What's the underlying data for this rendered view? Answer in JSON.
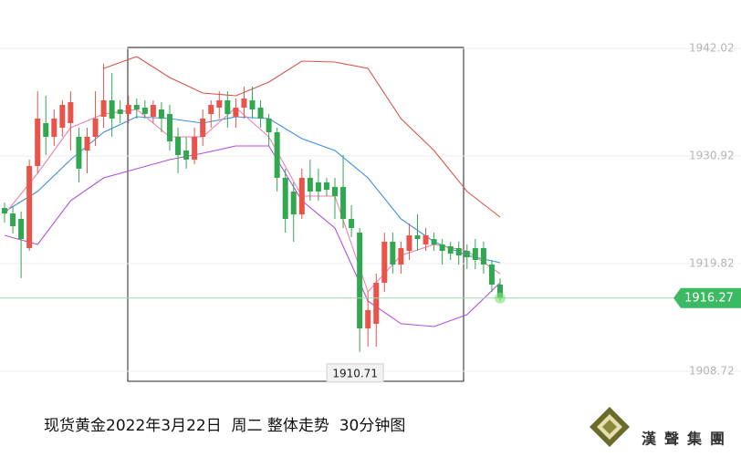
{
  "chart_data": {
    "type": "candlestick",
    "caption": "现货黄金2022年3月22日  周二 整体走势  30分钟图",
    "watermark": "漢聲集團",
    "up_color": "#e8534a",
    "down_color": "#2fa84f",
    "ylim": [
      1899.88,
      1947.01
    ],
    "yticks": [
      1942.02,
      1930.92,
      1919.82,
      1908.72
    ],
    "last_price": 1916.27,
    "low_label": 1910.71,
    "open": [
      1925.56,
      1925.0,
      1924.43,
      1921.42,
      1929.89,
      1934.31,
      1932.9,
      1933.84,
      1934.31,
      1932.9,
      1931.49,
      1932.9,
      1934.97,
      1936.66,
      1935.72,
      1935.25,
      1936.19,
      1935.91,
      1934.97,
      1935.72,
      1935.25,
      1932.9,
      1931.49,
      1930.55,
      1932.9,
      1935.25,
      1935.91,
      1936.66,
      1934.97,
      1935.91,
      1936.66,
      1935.91,
      1934.78,
      1933.37,
      1928.67,
      1927.26,
      1924.9,
      1928.67,
      1928.2,
      1928.2,
      1927.73,
      1927.73,
      1924.43,
      1923.02,
      1913.14,
      1913.62,
      1917.85,
      1922.08,
      1919.73,
      1921.14,
      1922.74,
      1921.8,
      1922.36,
      1921.8,
      1921.61,
      1921.42,
      1921.14,
      1921.42,
      1921.42,
      1919.73,
      1917.66
    ],
    "high": [
      1926.13,
      1925.75,
      1925.19,
      1930.55,
      1937.6,
      1937.13,
      1935.72,
      1936.66,
      1937.6,
      1933.84,
      1933.84,
      1937.6,
      1940.43,
      1939.48,
      1936.66,
      1937.13,
      1936.85,
      1936.66,
      1936.66,
      1936.47,
      1936.19,
      1933.84,
      1932.9,
      1933.84,
      1935.72,
      1936.66,
      1937.6,
      1937.6,
      1936.85,
      1938.07,
      1938.07,
      1936.66,
      1935.25,
      1933.84,
      1929.61,
      1928.2,
      1929.61,
      1930.55,
      1929.61,
      1928.67,
      1928.67,
      1931.02,
      1925.84,
      1923.49,
      1916.91,
      1918.79,
      1923.02,
      1923.02,
      1922.08,
      1923.96,
      1924.9,
      1923.49,
      1923.02,
      1922.36,
      1922.08,
      1922.08,
      1921.8,
      1922.36,
      1922.08,
      1920.2,
      1918.32
    ],
    "low": [
      1924.06,
      1922.93,
      1918.32,
      1921.14,
      1929.14,
      1931.02,
      1931.96,
      1932.9,
      1931.49,
      1928.2,
      1929.14,
      1931.96,
      1933.84,
      1932.9,
      1934.31,
      1934.31,
      1934.78,
      1934.78,
      1934.31,
      1933.37,
      1931.49,
      1929.14,
      1929.61,
      1930.08,
      1931.96,
      1933.84,
      1934.78,
      1933.84,
      1933.84,
      1934.78,
      1934.78,
      1933.84,
      1931.96,
      1927.26,
      1923.02,
      1922.08,
      1924.43,
      1926.31,
      1926.31,
      1926.78,
      1924.43,
      1923.49,
      1922.55,
      1910.71,
      1911.26,
      1911.26,
      1916.91,
      1918.79,
      1918.79,
      1920.2,
      1921.14,
      1921.14,
      1921.14,
      1919.73,
      1920.2,
      1919.73,
      1919.26,
      1919.26,
      1918.79,
      1916.91,
      1915.97
    ],
    "close": [
      1925.0,
      1923.68,
      1922.36,
      1929.89,
      1934.78,
      1932.9,
      1934.78,
      1936.19,
      1936.47,
      1929.61,
      1932.9,
      1934.78,
      1936.66,
      1934.78,
      1935.25,
      1936.19,
      1935.72,
      1935.25,
      1936.19,
      1934.78,
      1932.43,
      1931.02,
      1930.55,
      1932.9,
      1934.78,
      1936.19,
      1936.66,
      1935.25,
      1935.91,
      1936.85,
      1935.72,
      1934.78,
      1933.37,
      1928.67,
      1924.43,
      1924.9,
      1928.67,
      1927.26,
      1927.26,
      1927.44,
      1926.78,
      1924.43,
      1923.49,
      1913.14,
      1915.03,
      1917.85,
      1922.08,
      1919.73,
      1921.42,
      1922.74,
      1922.36,
      1922.74,
      1921.8,
      1921.14,
      1920.86,
      1920.67,
      1920.48,
      1920.2,
      1919.73,
      1917.66,
      1916.27
    ],
    "lines": [
      {
        "color": "#d9544a",
        "x": [
          0,
          4,
          8,
          12,
          16,
          20,
          24,
          28,
          32,
          36,
          40,
          44,
          48,
          52,
          56,
          60
        ],
        "values": [
          null,
          null,
          null,
          1939.95,
          1941.18,
          1939.01,
          1937.41,
          1937.13,
          1938.54,
          1940.71,
          1940.61,
          1939.95,
          1934.78,
          1931.49,
          1927.26,
          1924.62
        ]
      },
      {
        "color": "#3d8fe0",
        "x": [
          0,
          4,
          8,
          12,
          16,
          20,
          24,
          28,
          32,
          36,
          40,
          44,
          48,
          52,
          56,
          60
        ],
        "values": [
          1925.19,
          1927.26,
          1930.55,
          1933.37,
          1934.97,
          1934.78,
          1934.31,
          1934.97,
          1934.78,
          1932.71,
          1931.49,
          1928.67,
          1924.43,
          1922.08,
          1920.67,
          1919.92
        ]
      },
      {
        "color": "#b04fe0",
        "x": [
          0,
          4,
          8,
          12,
          16,
          20,
          24,
          28,
          32,
          36,
          40,
          44,
          48,
          52,
          56,
          60
        ],
        "values": [
          1922.74,
          1921.8,
          1926.31,
          1928.67,
          1929.61,
          1930.55,
          1931.21,
          1931.96,
          1931.96,
          1926.31,
          1923.49,
          1915.97,
          1913.62,
          1913.33,
          1914.56,
          1917.85
        ]
      },
      {
        "color": "#f07fb0",
        "x": [
          0,
          4,
          8,
          12,
          16,
          20,
          24,
          28,
          32,
          36,
          40,
          44,
          48,
          52,
          56,
          60
        ],
        "values": [
          1924.9,
          1929.14,
          1933.84,
          1935.25,
          1935.72,
          1932.9,
          1932.9,
          1935.91,
          1932.9,
          1926.78,
          1926.78,
          1916.91,
          1920.67,
          1921.8,
          1921.14,
          1918.79
        ]
      }
    ]
  }
}
